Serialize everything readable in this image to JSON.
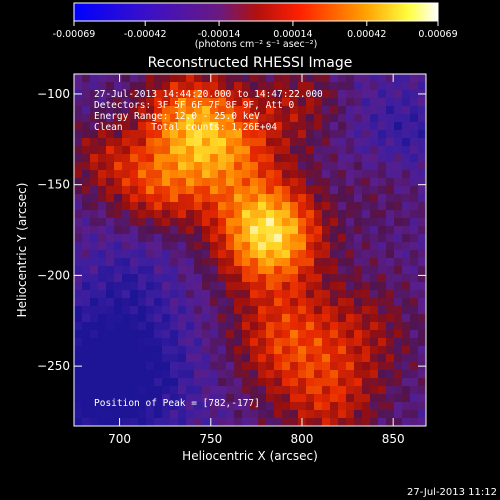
{
  "chart_data": {
    "type": "heatmap",
    "title": "Reconstructed RHESSI Image",
    "xlabel": "Heliocentric X (arcsec)",
    "ylabel": "Heliocentric Y (arcsec)",
    "xlim": [
      675,
      868
    ],
    "ylim": [
      -283,
      -89
    ],
    "x_ticks": [
      700,
      750,
      800,
      850
    ],
    "y_ticks": [
      -100,
      -150,
      -200,
      -250
    ],
    "colorbar": {
      "range": [
        -0.00069,
        0.00069
      ],
      "tick_values": [
        -0.00069,
        -0.00042,
        -0.00014,
        0.00014,
        0.00042,
        0.00069
      ],
      "tick_labels": [
        "-0.00069",
        "-0.00042",
        "-0.00014",
        "0.00014",
        "0.00042",
        "0.00069"
      ],
      "units_label": "(photons cm⁻² s⁻¹ asec⁻²)",
      "colormap": "RHESSI blue-purple-red-yellow-white"
    },
    "peak": {
      "x": 782,
      "y": -177
    },
    "annotations": {
      "time_range": "27-Jul-2013 14:44:20.000 to 14:47:22.000",
      "detectors": "Detectors: 3F 5F 6F 7F 8F 9F, Att 0",
      "energy": "Energy Range: 12.0 - 25.0 keV",
      "method": "Clean     Total counts: 1.26E+04",
      "peak_label": "Position of Peak = [782,-177]"
    },
    "timestamp": "27-Jul-2013 11:12"
  }
}
